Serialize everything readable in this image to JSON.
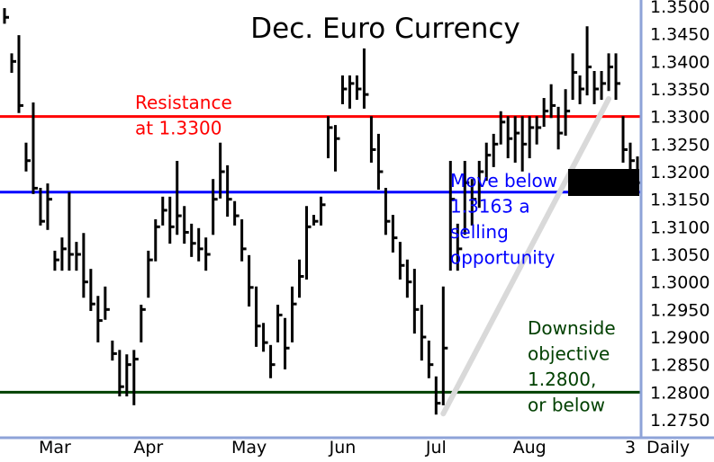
{
  "chart_data": {
    "type": "bar",
    "subtype": "ohlc",
    "title": "Dec. Euro Currency",
    "period_label": "Daily",
    "ylim": [
      1.275,
      1.35
    ],
    "yticks": [
      "1.2750",
      "1.2800",
      "1.2850",
      "1.2900",
      "1.2950",
      "1.3000",
      "1.3050",
      "1.3100",
      "1.3150",
      "1.3200",
      "1.3250",
      "1.3300",
      "1.3350",
      "1.3400",
      "1.3450",
      "1.3500"
    ],
    "x_labels": [
      {
        "label": "Mar",
        "bar": 7
      },
      {
        "label": "Apr",
        "bar": 20
      },
      {
        "label": "May",
        "bar": 34
      },
      {
        "label": "Jun",
        "bar": 47
      },
      {
        "label": "Jul",
        "bar": 60
      },
      {
        "label": "Aug",
        "bar": 73
      },
      {
        "label": "3",
        "bar": 87
      }
    ],
    "bars_hlc": [
      [
        1.3495,
        1.347,
        1.348
      ],
      [
        1.3413,
        1.3381,
        1.34
      ],
      [
        1.3446,
        1.3308,
        1.332
      ],
      [
        1.3251,
        1.3202,
        1.322
      ],
      [
        1.3324,
        1.3161,
        1.317
      ],
      [
        1.3169,
        1.3104,
        1.311
      ],
      [
        1.3177,
        1.3096,
        1.315
      ],
      [
        1.3055,
        1.3022,
        1.304
      ],
      [
        1.3079,
        1.3022,
        1.306
      ],
      [
        1.3161,
        1.3022,
        1.305
      ],
      [
        1.3071,
        1.3022,
        1.305
      ],
      [
        1.3087,
        1.2973,
        1.3
      ],
      [
        1.3022,
        1.2949,
        1.296
      ],
      [
        1.2973,
        1.2892,
        1.293
      ],
      [
        1.299,
        1.2933,
        1.295
      ],
      [
        1.2892,
        1.2859,
        1.287
      ],
      [
        1.2875,
        1.2794,
        1.281
      ],
      [
        1.2867,
        1.2794,
        1.285
      ],
      [
        1.2875,
        1.2778,
        1.286
      ],
      [
        1.2957,
        1.2892,
        1.295
      ],
      [
        1.3055,
        1.2973,
        1.304
      ],
      [
        1.3112,
        1.3039,
        1.31
      ],
      [
        1.3153,
        1.3104,
        1.313
      ],
      [
        1.3153,
        1.3071,
        1.31
      ],
      [
        1.3218,
        1.3087,
        1.312
      ],
      [
        1.3136,
        1.3071,
        1.309
      ],
      [
        1.3104,
        1.3047,
        1.307
      ],
      [
        1.3096,
        1.3039,
        1.306
      ],
      [
        1.3079,
        1.3022,
        1.305
      ],
      [
        1.3185,
        1.3087,
        1.315
      ],
      [
        1.3251,
        1.3153,
        1.32
      ],
      [
        1.321,
        1.312,
        1.315
      ],
      [
        1.3145,
        1.3104,
        1.312
      ],
      [
        1.3112,
        1.3039,
        1.306
      ],
      [
        1.3047,
        1.2957,
        1.299
      ],
      [
        1.299,
        1.2884,
        1.292
      ],
      [
        1.2924,
        1.2875,
        1.289
      ],
      [
        1.2884,
        1.2827,
        1.285
      ],
      [
        1.2957,
        1.2892,
        1.294
      ],
      [
        1.2933,
        1.2843,
        1.288
      ],
      [
        1.299,
        1.2892,
        1.296
      ],
      [
        1.3039,
        1.2973,
        1.301
      ],
      [
        1.3136,
        1.3006,
        1.31
      ],
      [
        1.312,
        1.3104,
        1.311
      ],
      [
        1.3153,
        1.3104,
        1.314
      ],
      [
        1.3299,
        1.3226,
        1.328
      ],
      [
        1.3283,
        1.3202,
        1.326
      ],
      [
        1.3373,
        1.3324,
        1.335
      ],
      [
        1.3373,
        1.3316,
        1.336
      ],
      [
        1.3373,
        1.3332,
        1.335
      ],
      [
        1.3422,
        1.3316,
        1.334
      ],
      [
        1.3299,
        1.3218,
        1.324
      ],
      [
        1.3267,
        1.3169,
        1.32
      ],
      [
        1.3169,
        1.3087,
        1.311
      ],
      [
        1.312,
        1.3055,
        1.308
      ],
      [
        1.3071,
        1.3006,
        1.303
      ],
      [
        1.3039,
        1.2973,
        1.3
      ],
      [
        1.3022,
        1.2908,
        1.295
      ],
      [
        1.2957,
        1.2859,
        1.29
      ],
      [
        1.2892,
        1.2827,
        1.285
      ],
      [
        1.2827,
        1.2761,
        1.278
      ],
      [
        1.299,
        1.2778,
        1.288
      ],
      [
        1.3218,
        1.3022,
        1.315
      ],
      [
        1.3104,
        1.3022,
        1.306
      ],
      [
        1.3218,
        1.3087,
        1.318
      ],
      [
        1.3185,
        1.3104,
        1.315
      ],
      [
        1.3218,
        1.3136,
        1.32
      ],
      [
        1.3251,
        1.3185,
        1.323
      ],
      [
        1.3267,
        1.321,
        1.325
      ],
      [
        1.3308,
        1.3251,
        1.329
      ],
      [
        1.3299,
        1.3226,
        1.326
      ],
      [
        1.3299,
        1.3218,
        1.327
      ],
      [
        1.3299,
        1.3202,
        1.325
      ],
      [
        1.3299,
        1.3226,
        1.328
      ],
      [
        1.3299,
        1.3251,
        1.328
      ],
      [
        1.3332,
        1.3283,
        1.331
      ],
      [
        1.3357,
        1.3299,
        1.332
      ],
      [
        1.3316,
        1.3242,
        1.327
      ],
      [
        1.3348,
        1.3267,
        1.331
      ],
      [
        1.3413,
        1.3332,
        1.338
      ],
      [
        1.3373,
        1.3324,
        1.335
      ],
      [
        1.3462,
        1.334,
        1.339
      ],
      [
        1.3381,
        1.3324,
        1.335
      ],
      [
        1.3381,
        1.3332,
        1.336
      ],
      [
        1.3413,
        1.3348,
        1.339
      ],
      [
        1.3413,
        1.3332,
        1.336
      ],
      [
        1.3299,
        1.3218,
        1.324
      ],
      [
        1.3251,
        1.3194,
        1.322
      ],
      [
        1.3226,
        1.3169,
        1.318
      ]
    ],
    "last_price": "1.3180",
    "levels": [
      {
        "name": "resistance",
        "value": 1.33,
        "color": "#ff0000",
        "label_lines": [
          "Resistance",
          "at 1.3300"
        ]
      },
      {
        "name": "sell-trigger",
        "value": 1.3163,
        "color": "#0000ff",
        "label_lines": [
          "Move below",
          "1.3163 a",
          "selling",
          "opportunity"
        ]
      },
      {
        "name": "objective",
        "value": 1.28,
        "color": "#004000",
        "label_lines": [
          "Downside",
          "objective",
          "1.2800,",
          "or below"
        ]
      }
    ],
    "trendline": {
      "from": {
        "bar": 61,
        "price": 1.2761
      },
      "to": {
        "bar": 84,
        "price": 1.3332
      },
      "color": "#d9d9d9"
    },
    "colors": {
      "bars": "#000000",
      "axis": "#8ea3d8",
      "last_price_bg": "#000000",
      "last_price_text": "#ffffff"
    }
  }
}
